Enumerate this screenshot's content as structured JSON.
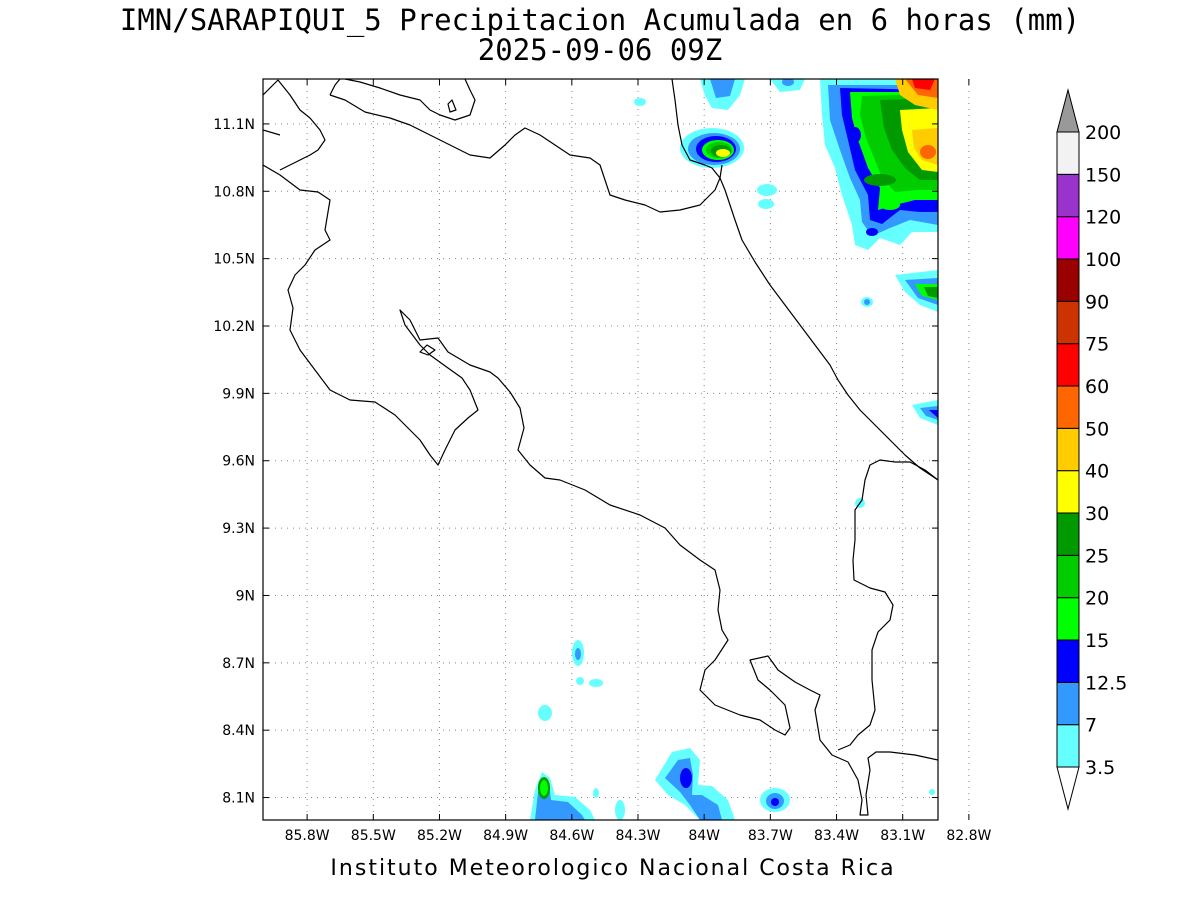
{
  "title_line1": "IMN/SARAPIQUI_5 Precipitacion Acumulada en 6 horas (mm)",
  "title_line2": "2025-09-06 09Z",
  "footer": "Instituto Meteorologico Nacional Costa Rica",
  "map": {
    "lon_range": [
      -86.0,
      -82.94
    ],
    "lat_range": [
      8.0,
      11.3
    ],
    "lon_ticks": [
      {
        "value": -85.8,
        "label": "85.8W"
      },
      {
        "value": -85.5,
        "label": "85.5W"
      },
      {
        "value": -85.2,
        "label": "85.2W"
      },
      {
        "value": -84.9,
        "label": "84.9W"
      },
      {
        "value": -84.6,
        "label": "84.6W"
      },
      {
        "value": -84.3,
        "label": "84.3W"
      },
      {
        "value": -84.0,
        "label": "84W"
      },
      {
        "value": -83.7,
        "label": "83.7W"
      },
      {
        "value": -83.4,
        "label": "83.4W"
      },
      {
        "value": -83.1,
        "label": "83.1W"
      },
      {
        "value": -82.8,
        "label": "82.8W"
      }
    ],
    "lat_ticks": [
      {
        "value": 11.1,
        "label": "11.1N"
      },
      {
        "value": 10.8,
        "label": "10.8N"
      },
      {
        "value": 10.5,
        "label": "10.5N"
      },
      {
        "value": 10.2,
        "label": "10.2N"
      },
      {
        "value": 9.9,
        "label": "9.9N"
      },
      {
        "value": 9.6,
        "label": "9.6N"
      },
      {
        "value": 9.3,
        "label": "9.3N"
      },
      {
        "value": 9.0,
        "label": "9N"
      },
      {
        "value": 8.7,
        "label": "8.7N"
      },
      {
        "value": 8.4,
        "label": "8.4N"
      },
      {
        "value": 8.1,
        "label": "8.1N"
      }
    ],
    "grid": "dotted"
  },
  "legend": {
    "unit": "mm",
    "levels": [
      {
        "label": "3.5",
        "color": "#66ffff"
      },
      {
        "label": "7",
        "color": "#3399ff"
      },
      {
        "label": "12.5",
        "color": "#0000ff"
      },
      {
        "label": "15",
        "color": "#00ff00"
      },
      {
        "label": "20",
        "color": "#00cc00"
      },
      {
        "label": "25",
        "color": "#009900"
      },
      {
        "label": "30",
        "color": "#ffff00"
      },
      {
        "label": "40",
        "color": "#ffcc00"
      },
      {
        "label": "50",
        "color": "#ff6600"
      },
      {
        "label": "60",
        "color": "#ff0000"
      },
      {
        "label": "75",
        "color": "#cc3300"
      },
      {
        "label": "90",
        "color": "#990000"
      },
      {
        "label": "100",
        "color": "#ff00ff"
      },
      {
        "label": "120",
        "color": "#9933cc"
      },
      {
        "label": "150",
        "color": "#f2f2f2"
      },
      {
        "label": "200",
        "color": "#999999"
      }
    ]
  },
  "precip_cells": [
    {
      "lon": -83.72,
      "lat": 11.0,
      "value": 30
    },
    {
      "lon": -82.95,
      "lat": 11.0,
      "value": 40
    },
    {
      "lon": -83.05,
      "lat": 11.12,
      "value": 25
    },
    {
      "lon": -83.0,
      "lat": 10.9,
      "value": 20
    },
    {
      "lon": -82.98,
      "lat": 10.35,
      "value": 25
    },
    {
      "lon": -82.98,
      "lat": 9.79,
      "value": 12.5
    },
    {
      "lon": -84.56,
      "lat": 8.13,
      "value": 20
    },
    {
      "lon": -83.78,
      "lat": 8.15,
      "value": 12.5
    },
    {
      "lon": -83.4,
      "lat": 8.1,
      "value": 12.5
    },
    {
      "lon": -84.41,
      "lat": 8.76,
      "value": 7
    },
    {
      "lon": -84.54,
      "lat": 8.49,
      "value": 3.5
    }
  ]
}
